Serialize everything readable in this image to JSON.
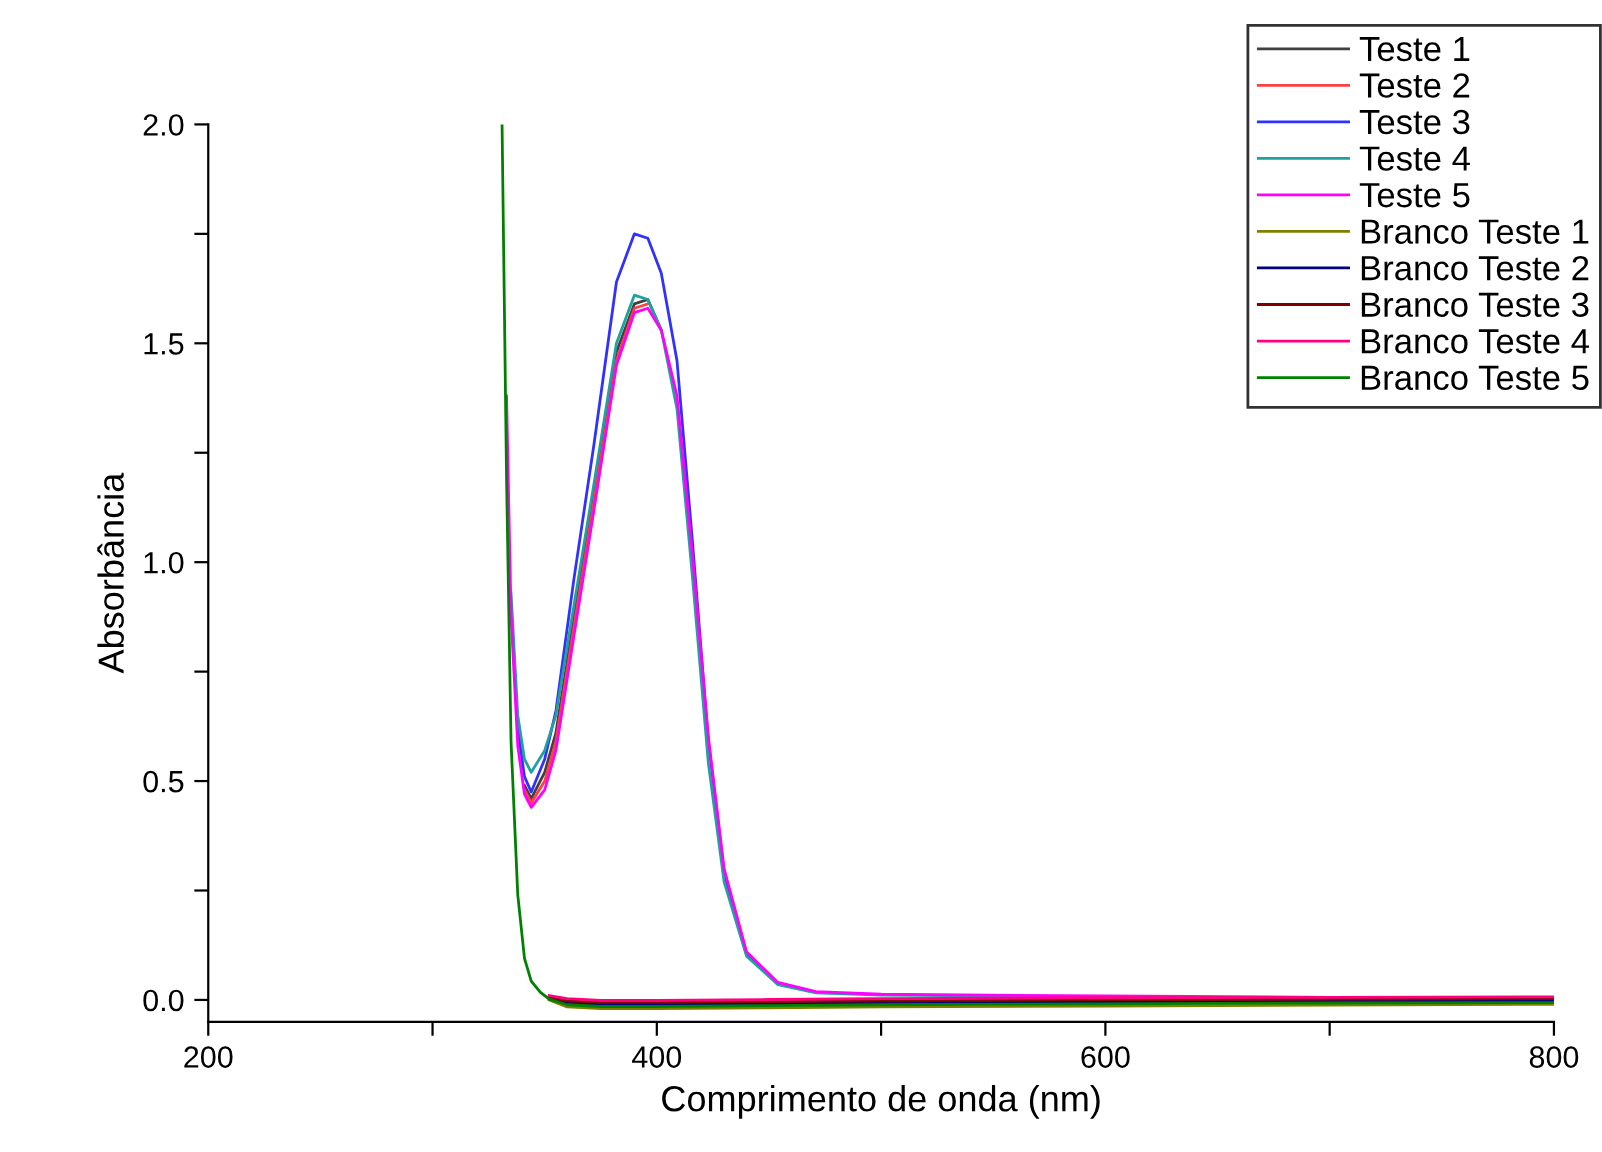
{
  "chart_data": {
    "type": "line",
    "xlabel": "Comprimento de onda (nm)",
    "ylabel": "Absorbância",
    "xlim": [
      200,
      800
    ],
    "ylim": [
      -0.05,
      2.0
    ],
    "xticks": [
      200,
      {
        "value": 300,
        "label": null
      },
      400,
      {
        "value": 500,
        "label": null
      },
      600,
      {
        "value": 700,
        "label": null
      },
      800
    ],
    "yticks": [
      "0.0",
      {
        "value": 0.25,
        "label": null
      },
      0.5,
      {
        "value": 0.75,
        "label": null
      },
      "1.0",
      {
        "value": 1.25,
        "label": null
      },
      1.5,
      {
        "value": 1.75,
        "label": null
      },
      "2.0"
    ],
    "legend": "top right",
    "series": [
      {
        "name": "Teste 1",
        "color": "#404040",
        "x": [
          341,
          344,
          350,
          355,
          363,
          372,
          382,
          390,
          396,
          402
        ],
        "values": [
          0.49,
          0.46,
          0.52,
          0.61,
          0.87,
          1.16,
          1.48,
          1.59,
          1.6,
          1.53
        ]
      },
      {
        "name": "Teste 2",
        "color": "#ff4040",
        "x": [
          341,
          344,
          350,
          355,
          363,
          372,
          382,
          390,
          396
        ],
        "values": [
          0.48,
          0.45,
          0.5,
          0.59,
          0.85,
          1.14,
          1.46,
          1.58,
          1.59
        ]
      },
      {
        "name": "Teste 3",
        "color": "#3030ff",
        "x": [
          335,
          338,
          341,
          344,
          350,
          355,
          363,
          372,
          382,
          390,
          396,
          402,
          409,
          416,
          423,
          430,
          440,
          454
        ],
        "values": [
          0.9,
          0.62,
          0.51,
          0.475,
          0.55,
          0.66,
          0.96,
          1.27,
          1.64,
          1.75,
          1.74,
          1.66,
          1.46,
          1.04,
          0.59,
          0.29,
          0.105,
          0.038
        ]
      },
      {
        "name": "Teste 4",
        "color": "#20a0a0",
        "x": [
          335,
          338,
          341,
          344,
          350,
          355,
          363,
          372,
          382,
          390,
          396,
          402,
          409,
          416,
          423,
          430,
          440,
          454,
          471,
          500,
          600
        ],
        "values": [
          0.93,
          0.65,
          0.55,
          0.52,
          0.57,
          0.65,
          0.9,
          1.18,
          1.5,
          1.61,
          1.6,
          1.53,
          1.35,
          0.96,
          0.54,
          0.27,
          0.1,
          0.035,
          0.016,
          0.011,
          0.007
        ]
      },
      {
        "name": "Teste 5",
        "color": "#ff00ff",
        "x": [
          333,
          335,
          338,
          341,
          344,
          350,
          355,
          363,
          372,
          382,
          390,
          396,
          402,
          409,
          416,
          423,
          430,
          440,
          454,
          471,
          500,
          600,
          700,
          800
        ],
        "values": [
          1.38,
          0.88,
          0.58,
          0.47,
          0.44,
          0.48,
          0.57,
          0.83,
          1.12,
          1.45,
          1.57,
          1.58,
          1.53,
          1.38,
          1.01,
          0.6,
          0.3,
          0.11,
          0.04,
          0.019,
          0.013,
          0.009,
          0.006,
          0.003
        ]
      },
      {
        "name": "Branco Teste 1",
        "color": "#808000",
        "x": [
          352,
          360,
          375,
          400,
          450,
          500,
          600,
          700,
          800
        ],
        "values": [
          0.0,
          -0.016,
          -0.02,
          -0.02,
          -0.018,
          -0.016,
          -0.014,
          -0.012,
          -0.01
        ]
      },
      {
        "name": "Branco Teste 2",
        "color": "#000080",
        "x": [
          352,
          360,
          375,
          400,
          450,
          500,
          600,
          700,
          800
        ],
        "values": [
          0.004,
          -0.007,
          -0.011,
          -0.011,
          -0.009,
          -0.007,
          -0.005,
          -0.003,
          -0.002
        ]
      },
      {
        "name": "Branco Teste 3",
        "color": "#800000",
        "x": [
          352,
          360,
          375,
          400,
          450,
          500,
          600,
          700,
          800
        ],
        "values": [
          0.006,
          -0.002,
          -0.006,
          -0.006,
          -0.004,
          -0.002,
          0.0,
          0.002,
          0.003
        ]
      },
      {
        "name": "Branco Teste 4",
        "color": "#ff0080",
        "x": [
          352,
          360,
          375,
          400,
          450,
          500,
          600,
          700,
          800
        ],
        "values": [
          0.01,
          0.003,
          -0.001,
          -0.001,
          0.001,
          0.003,
          0.005,
          0.006,
          0.007
        ]
      },
      {
        "name": "Branco Teste 5",
        "color": "#008000",
        "x": [
          331,
          333,
          335,
          338,
          341,
          344,
          348,
          352,
          360,
          375,
          400,
          450,
          500,
          600,
          700,
          800
        ],
        "values": [
          2.0,
          1.19,
          0.59,
          0.24,
          0.095,
          0.043,
          0.018,
          0.002,
          -0.011,
          -0.015,
          -0.015,
          -0.013,
          -0.011,
          -0.009,
          -0.007,
          -0.006
        ]
      }
    ]
  }
}
